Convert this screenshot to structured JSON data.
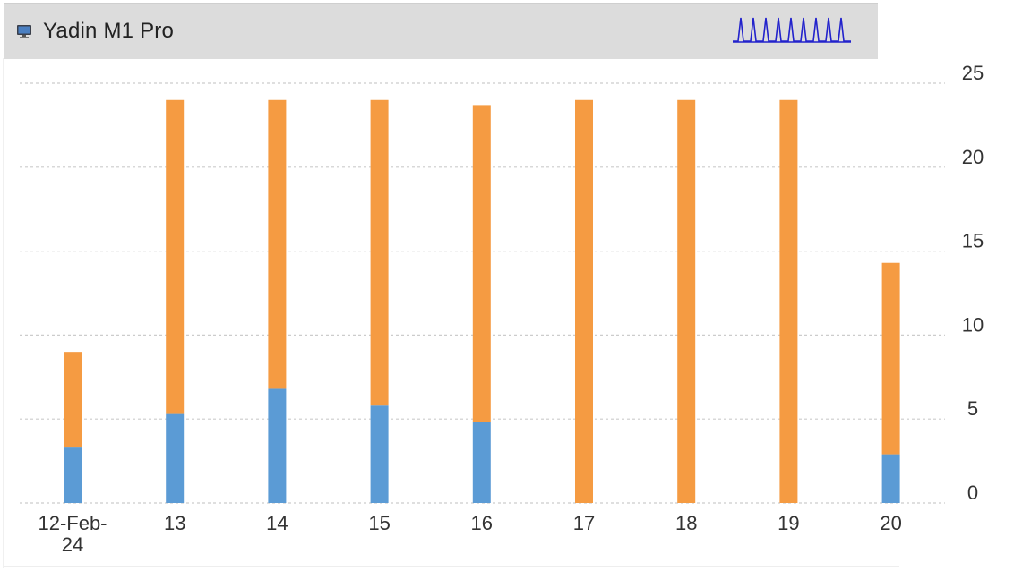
{
  "panel": {
    "title": "Yadin M1 Pro",
    "icon": "monitor-icon"
  },
  "colors": {
    "header_bg": "#dcdcdc",
    "series_blue": "#5b9bd5",
    "series_orange": "#f59b42",
    "grid": "#cccccc",
    "tick_text": "#333333",
    "sparkline": "#2222cc"
  },
  "chart_data": {
    "type": "bar",
    "stacked": true,
    "categories": [
      "12-Feb-24",
      "13",
      "14",
      "15",
      "16",
      "17",
      "18",
      "19",
      "20"
    ],
    "category_display": [
      [
        "12-Feb-",
        "24"
      ],
      [
        "13"
      ],
      [
        "14"
      ],
      [
        "15"
      ],
      [
        "16"
      ],
      [
        "17"
      ],
      [
        "18"
      ],
      [
        "19"
      ],
      [
        "20"
      ]
    ],
    "series": [
      {
        "values": [
          3.3,
          5.3,
          6.8,
          5.8,
          4.8,
          0,
          0,
          0,
          2.9
        ]
      },
      {
        "values": [
          5.7,
          18.7,
          17.2,
          18.2,
          18.9,
          24.0,
          24.0,
          24.0,
          11.4
        ]
      }
    ],
    "ylim": [
      0,
      25
    ],
    "yticks": [
      "0",
      "5",
      "10",
      "15",
      "20",
      "25"
    ],
    "ytick_values": [
      0,
      5,
      10,
      15,
      20,
      25
    ],
    "y_axis_side": "right",
    "grid": true,
    "legend": "none"
  }
}
